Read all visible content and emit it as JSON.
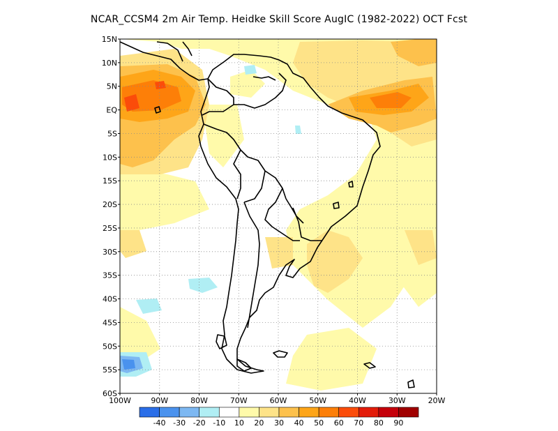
{
  "title": "NCAR_CCSM4  2m Air Temp. Heidke Skill Score AugIC (1982-2022) OCT Fcst",
  "lat_labels": [
    "15N",
    "10N",
    "5N",
    "EQ",
    "5S",
    "10S",
    "15S",
    "20S",
    "25S",
    "30S",
    "35S",
    "40S",
    "45S",
    "50S",
    "55S",
    "60S"
  ],
  "lon_labels": [
    "100W",
    "90W",
    "80W",
    "70W",
    "60W",
    "50W",
    "40W",
    "30W",
    "20W"
  ],
  "extent": {
    "lon_min": -100,
    "lon_max": -20,
    "lat_min": -60,
    "lat_max": 15
  },
  "colorbar": {
    "colors": [
      "#2a6ee8",
      "#4a92ee",
      "#7db8f2",
      "#b0eef4",
      "#ffffff",
      "#fffaaa",
      "#fee388",
      "#fdc14c",
      "#fea518",
      "#fd7f08",
      "#fb4c0a",
      "#e31c0a",
      "#c5000a",
      "#a00000"
    ],
    "labels": [
      "-40",
      "-30",
      "-20",
      "-10",
      "10",
      "20",
      "30",
      "40",
      "50",
      "60",
      "70",
      "80",
      "90"
    ]
  },
  "field_colors": {
    "light_yellow": "#fffaaa",
    "yellow": "#fee388",
    "orange_light": "#fdc14c",
    "orange": "#fea518",
    "orange_dark": "#fd7f08",
    "red_orange": "#fb4c0a",
    "light_blue": "#b0eef4",
    "blue_mid": "#7db8f2",
    "blue": "#4a92ee"
  }
}
